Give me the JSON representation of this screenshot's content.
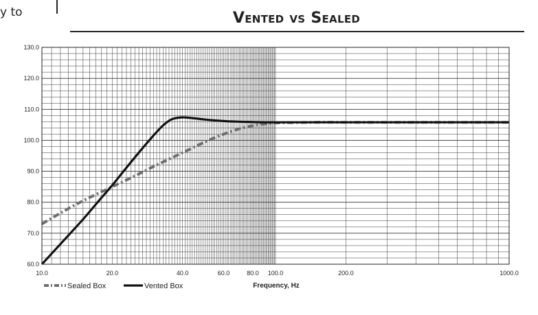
{
  "page": {
    "fragment_text": "y to"
  },
  "chart_data": {
    "type": "line",
    "title": "Vented vs Sealed",
    "xlabel": "Frequency, Hz",
    "ylabel": "",
    "x_scale": "log",
    "xlim": [
      10,
      1000
    ],
    "ylim": [
      60,
      130
    ],
    "y_ticks": [
      "130.0",
      "120.0",
      "110.0",
      "100.0",
      "90.0",
      "80.0",
      "70.0",
      "60.0"
    ],
    "x_ticks": [
      {
        "value": 10,
        "label": "10.0"
      },
      {
        "value": 20,
        "label": "20.0"
      },
      {
        "value": 40,
        "label": "40.0"
      },
      {
        "value": 60,
        "label": "60.0"
      },
      {
        "value": 80,
        "label": "80.0"
      },
      {
        "value": 100,
        "label": "100.0"
      },
      {
        "value": 200,
        "label": "200.0"
      },
      {
        "value": 1000,
        "label": "1000.0"
      }
    ],
    "grid": true,
    "legend_position": "bottom-left",
    "series": [
      {
        "name": "Sealed Box",
        "color": "#6e6e6e",
        "style": "dash-dot",
        "x": [
          10,
          12,
          15,
          20,
          25,
          30,
          40,
          50,
          60,
          70,
          80,
          90,
          100,
          150,
          200,
          500,
          1000
        ],
        "y": [
          73.0,
          76.5,
          80.5,
          85.0,
          88.5,
          91.5,
          96.0,
          99.5,
          102.0,
          103.7,
          104.7,
          105.3,
          105.6,
          105.8,
          105.8,
          105.8,
          105.8
        ]
      },
      {
        "name": "Vented Box",
        "color": "#111111",
        "style": "solid",
        "x": [
          10,
          12,
          15,
          18,
          20,
          25,
          30,
          33,
          36,
          40,
          45,
          50,
          60,
          70,
          80,
          90,
          100,
          200,
          500,
          1000
        ],
        "y": [
          60.0,
          66.5,
          74.5,
          81.5,
          85.5,
          94.5,
          101.5,
          104.8,
          106.8,
          107.4,
          107.1,
          106.7,
          106.2,
          106.0,
          105.9,
          105.8,
          105.8,
          105.8,
          105.8,
          105.8
        ]
      }
    ]
  }
}
